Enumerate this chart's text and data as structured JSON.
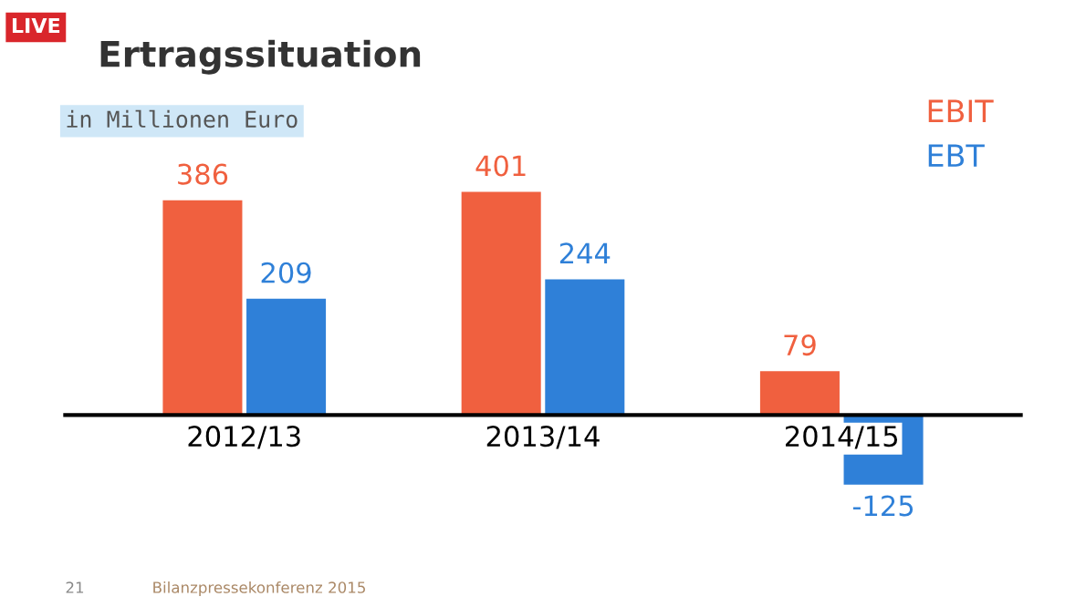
{
  "chart_data": {
    "type": "bar",
    "title": "Ertragssituation",
    "subtitle": "in Millionen Euro",
    "categories": [
      "2012/13",
      "2013/14",
      "2014/15"
    ],
    "series": [
      {
        "name": "EBIT",
        "color": "#f0603f",
        "values": [
          386,
          401,
          79
        ]
      },
      {
        "name": "EBT",
        "color": "#2f80d8",
        "values": [
          209,
          244,
          -125
        ]
      }
    ],
    "data_labels": true,
    "legend": "top right",
    "tick_labels": "x",
    "annotations": [
      "LIVE",
      "21",
      "Bilanzpressekonferenz 2015"
    ]
  }
}
